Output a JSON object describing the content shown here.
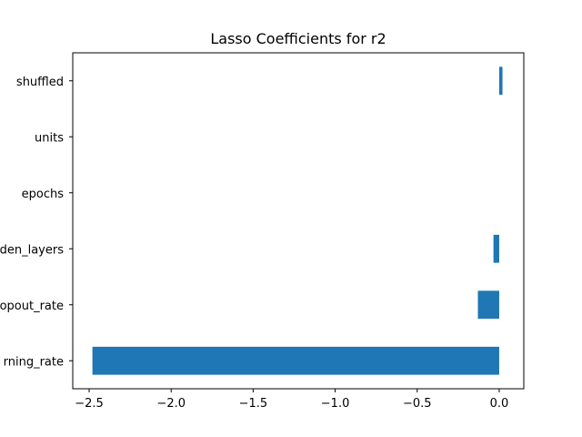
{
  "chart_data": {
    "type": "bar",
    "orientation": "horizontal",
    "title": "Lasso Coefficients for r2",
    "xlabel": "",
    "ylabel": "",
    "categories": [
      "learning_rate",
      "dropout_rate",
      "hidden_layers",
      "epochs",
      "units",
      "shuffled"
    ],
    "visible_category_labels": [
      "rning_rate",
      "opout_rate",
      "den_layers",
      "epochs",
      "units",
      "shuffled"
    ],
    "values": [
      -2.48,
      -0.13,
      -0.035,
      0.0,
      0.0,
      0.02
    ],
    "xlim": [
      -2.6,
      0.15
    ],
    "xticks": [
      -2.5,
      -2.0,
      -1.5,
      -1.0,
      -0.5,
      0.0
    ],
    "xtick_labels": [
      "−2.5",
      "−2.0",
      "−1.5",
      "−1.0",
      "−0.5",
      "0.0"
    ],
    "grid": false,
    "bar_color": "#1f77b4"
  }
}
